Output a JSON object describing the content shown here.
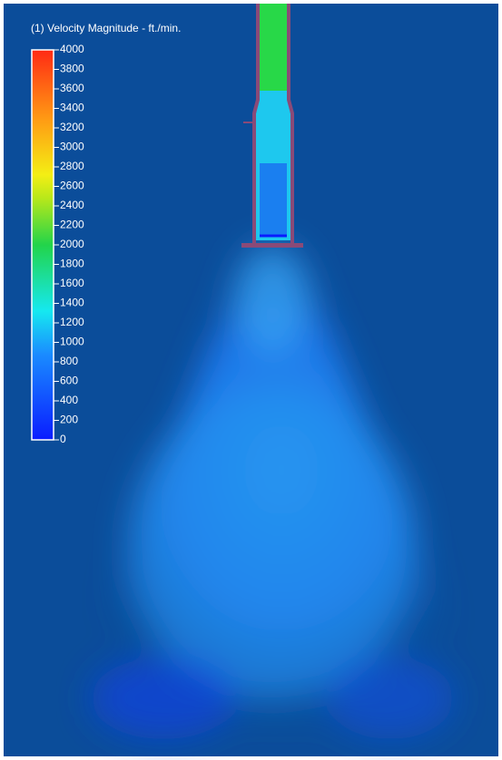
{
  "legend": {
    "title": "(1) Velocity Magnitude - ft./min.",
    "range": [
      0,
      4000
    ],
    "ticks": [
      0,
      200,
      400,
      600,
      800,
      1000,
      1200,
      1400,
      1600,
      1800,
      2000,
      2200,
      2400,
      2600,
      2800,
      3000,
      3200,
      3400,
      3600,
      3800,
      4000
    ]
  }
}
